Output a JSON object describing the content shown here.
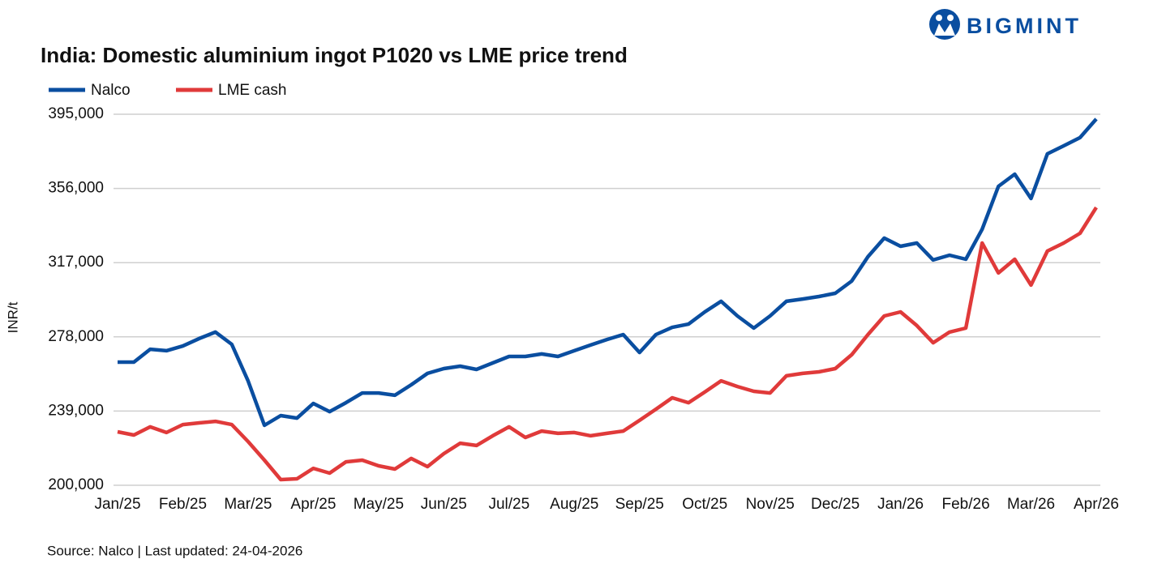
{
  "brand": "BIGMINT",
  "chart_data": {
    "type": "line",
    "title": "India: Domestic aluminium ingot P1020 vs LME price trend",
    "y_label": "INR/t",
    "source": "Source: Nalco | Last updated: 24-04-2026",
    "categories": [
      "Jan/25",
      null,
      null,
      null,
      "Feb/25",
      null,
      null,
      null,
      "Mar/25",
      null,
      null,
      null,
      "Apr/25",
      null,
      null,
      null,
      "May/25",
      null,
      null,
      null,
      "Jun/25",
      null,
      null,
      null,
      "Jul/25",
      null,
      null,
      null,
      "Aug/25",
      null,
      null,
      null,
      "Sep/25",
      null,
      null,
      null,
      "Oct/25",
      null,
      null,
      null,
      "Nov/25",
      null,
      null,
      null,
      "Dec/25",
      null,
      null,
      null,
      "Jan/26",
      null,
      null,
      null,
      "Feb/26",
      null,
      null,
      null,
      "Mar/26",
      null,
      null,
      null,
      "Apr/26"
    ],
    "series": [
      {
        "name": "Nalco",
        "color": "#0a4ea0",
        "values": [
          264700,
          264700,
          271500,
          270700,
          273200,
          277100,
          280500,
          274100,
          254900,
          231500,
          236600,
          235300,
          243000,
          238700,
          243400,
          248500,
          248500,
          247300,
          252800,
          258800,
          261300,
          262600,
          260900,
          264300,
          267700,
          267700,
          269000,
          267700,
          270700,
          273700,
          276600,
          279200,
          269800,
          279200,
          283000,
          284700,
          291100,
          296700,
          289000,
          282600,
          289000,
          296700,
          297900,
          299200,
          300900,
          307300,
          320100,
          329900,
          325600,
          327300,
          318400,
          320900,
          318800,
          334500,
          357100,
          363500,
          350700,
          374200,
          378400,
          382700,
          392500
        ]
      },
      {
        "name": "LME cash",
        "color": "#e03a3a",
        "values": [
          228100,
          226400,
          230700,
          227700,
          231900,
          232800,
          233600,
          231900,
          223000,
          213200,
          203000,
          203400,
          208900,
          206400,
          212300,
          213200,
          210200,
          208500,
          214100,
          209800,
          216600,
          222100,
          220900,
          226000,
          230700,
          225100,
          228500,
          227300,
          227700,
          226000,
          227300,
          228500,
          234100,
          240000,
          246000,
          243400,
          249000,
          254900,
          251900,
          249400,
          248500,
          257500,
          258800,
          259600,
          261300,
          268600,
          279200,
          289000,
          291100,
          283900,
          274900,
          280500,
          282600,
          327300,
          311600,
          318800,
          305200,
          323100,
          327300,
          332400,
          346000
        ]
      }
    ],
    "ylim": [
      200000,
      395000
    ],
    "yticks": [
      {
        "value": 200000,
        "label": "200,000"
      },
      {
        "value": 239000,
        "label": "239,000"
      },
      {
        "value": 278000,
        "label": "278,000"
      },
      {
        "value": 317000,
        "label": "317,000"
      },
      {
        "value": 356000,
        "label": "356,000"
      },
      {
        "value": 395000,
        "label": "395,000"
      }
    ],
    "grid": true,
    "legend": "top-left"
  }
}
